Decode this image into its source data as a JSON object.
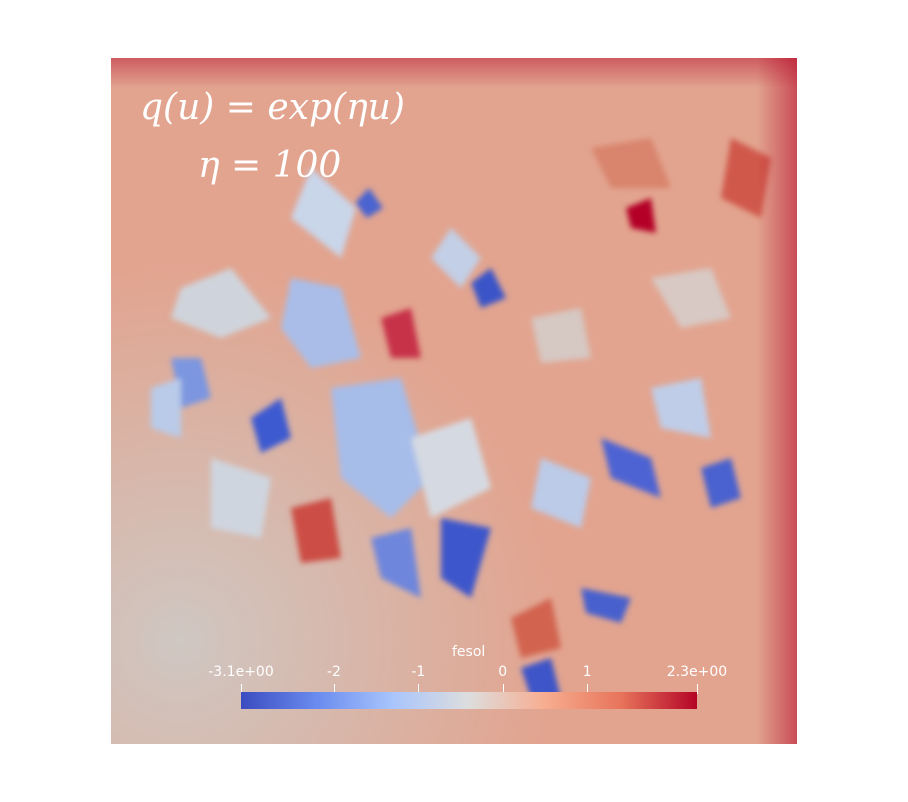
{
  "annotation": {
    "formula": "q(u) = exp(ηu)",
    "parameter": "η = 100"
  },
  "colorbar": {
    "title": "fesol",
    "min_label": "-3.1e+00",
    "max_label": "2.3e+00",
    "range": [
      -3.1,
      2.3
    ],
    "ticks": [
      {
        "value": -3.1,
        "label": "-3.1e+00"
      },
      {
        "value": -2,
        "label": "-2"
      },
      {
        "value": -1,
        "label": "-1"
      },
      {
        "value": 0,
        "label": "0"
      },
      {
        "value": 1,
        "label": "1"
      },
      {
        "value": 2.3,
        "label": "2.3e+00"
      }
    ],
    "colormap": [
      "#3b4cc0",
      "#6a8bef",
      "#a9c5fc",
      "#dddddd",
      "#f7ad90",
      "#e7745b",
      "#b40426"
    ]
  },
  "colors": {
    "background": "#ffffff",
    "mid_gray": "#d8d0cc",
    "salmon": "#e49a82",
    "blue": "#3b4cc0",
    "dark_red": "#b40426"
  }
}
